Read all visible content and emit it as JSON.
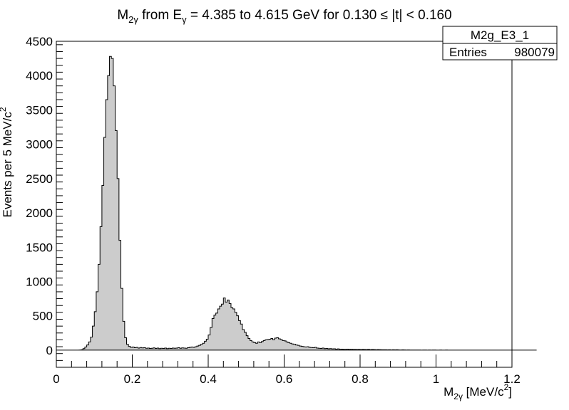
{
  "chart_data": {
    "type": "histogram",
    "title_parts": {
      "m": "M",
      "sub1": "2γ",
      "from": " from E",
      "sub2": "γ",
      "rest": " = 4.385 to 4.615 GeV for 0.130 ≤ |t| < 0.160"
    },
    "xlabel_parts": {
      "m": "M",
      "sub": "2γ",
      "unit": " [MeV/c",
      "sup": "2",
      "close": "]"
    },
    "ylabel_parts": {
      "main": "Events per 5 MeV/c",
      "sup": "2"
    },
    "xlim": [
      0,
      1.2
    ],
    "ylim": [
      -250,
      4500
    ],
    "x_ticks": [
      0,
      0.2,
      0.4,
      0.6,
      0.8,
      1,
      1.2
    ],
    "x_tick_labels": [
      "0",
      "0.2",
      "0.4",
      "0.6",
      "0.8",
      "1",
      "1.2"
    ],
    "y_ticks": [
      0,
      500,
      1000,
      1500,
      2000,
      2500,
      3000,
      3500,
      4000,
      4500
    ],
    "y_tick_labels": [
      "0",
      "500",
      "1000",
      "1500",
      "2000",
      "2500",
      "3000",
      "3500",
      "4000",
      "4500"
    ],
    "bin_width": 0.005,
    "x_start": 0.0,
    "values": [
      0,
      0,
      0,
      0,
      0,
      0,
      0,
      0,
      0,
      0,
      0,
      0,
      2,
      6,
      22,
      45,
      75,
      120,
      190,
      350,
      560,
      850,
      1250,
      1800,
      2400,
      3100,
      3650,
      4000,
      4280,
      4250,
      3850,
      3200,
      2500,
      1600,
      900,
      420,
      180,
      85,
      55,
      40,
      45,
      35,
      40,
      30,
      38,
      32,
      35,
      28,
      30,
      25,
      28,
      32,
      25,
      30,
      22,
      28,
      25,
      30,
      22,
      28,
      25,
      30,
      28,
      30,
      35,
      28,
      32,
      30,
      28,
      35,
      40,
      45,
      40,
      50,
      60,
      70,
      85,
      100,
      130,
      160,
      220,
      330,
      460,
      510,
      540,
      600,
      640,
      670,
      760,
      700,
      730,
      680,
      620,
      600,
      550,
      500,
      430,
      380,
      300,
      260,
      210,
      170,
      140,
      120,
      110,
      100,
      120,
      110,
      125,
      140,
      150,
      155,
      160,
      170,
      150,
      175,
      180,
      165,
      155,
      140,
      135,
      120,
      110,
      100,
      90,
      85,
      75,
      70,
      60,
      55,
      50,
      45,
      50,
      40,
      38,
      35,
      40,
      30,
      28,
      25,
      30,
      22,
      25,
      20,
      22,
      18,
      20,
      15,
      18,
      12,
      15,
      10,
      12,
      14,
      10,
      12,
      10,
      11,
      9,
      10,
      8,
      10,
      9,
      8,
      10,
      7,
      9,
      8,
      6,
      8,
      7,
      6,
      5,
      6,
      4,
      5,
      3,
      5,
      4,
      5,
      3,
      2,
      4,
      3,
      2,
      3,
      2,
      1,
      2,
      1,
      2,
      1,
      0,
      1,
      1,
      0,
      1,
      0,
      1,
      1,
      0,
      0,
      1,
      0,
      0,
      1,
      0,
      0,
      0,
      0,
      0,
      0,
      0,
      0,
      0,
      0,
      0,
      0,
      0,
      0,
      0,
      0,
      0,
      0,
      0,
      0,
      0,
      0,
      0,
      0,
      0,
      0,
      0,
      0,
      0,
      0,
      0,
      0,
      0,
      0,
      0,
      0,
      0,
      0,
      0,
      0,
      0,
      0,
      0,
      0,
      0,
      0,
      0
    ],
    "fill_color": "#cccccc",
    "line_color": "#000000"
  },
  "stats_box": {
    "name": "M2g_E3_1",
    "entries_label": "Entries",
    "entries_value": "980079"
  }
}
